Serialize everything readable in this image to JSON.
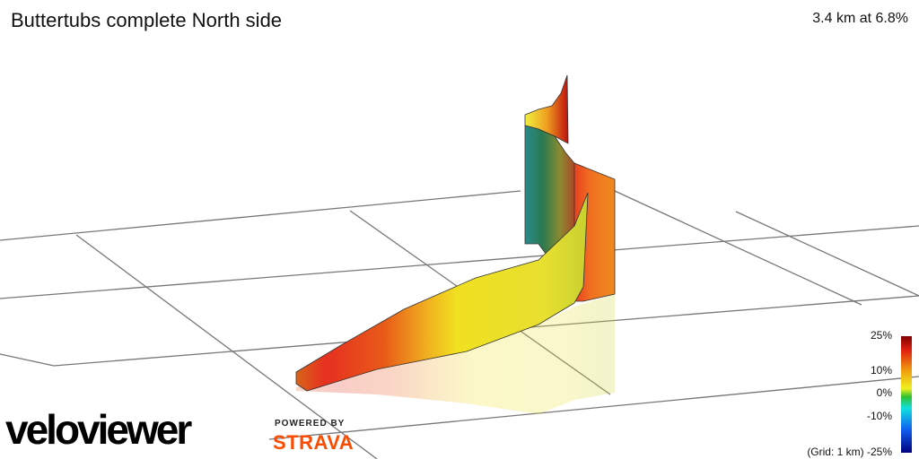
{
  "header": {
    "title": "Buttertubs complete North side",
    "summary": "3.4 km at 6.8%"
  },
  "legend": {
    "labels": [
      "25%",
      "10%",
      "0%",
      "-10%",
      "(Grid: 1 km) -25%"
    ]
  },
  "footer": {
    "logo": "veloviewer",
    "powered_by": "POWERED BY",
    "strava": "STRAVA"
  }
}
